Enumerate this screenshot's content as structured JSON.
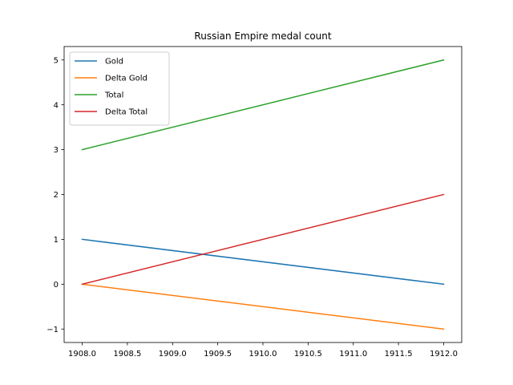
{
  "chart_data": {
    "type": "line",
    "title": "Russian Empire medal count",
    "xlabel": "",
    "ylabel": "",
    "xlim": [
      1907.8,
      1912.2
    ],
    "ylim": [
      -1.3,
      5.3
    ],
    "xticks": [
      1908.0,
      1908.5,
      1909.0,
      1909.5,
      1910.0,
      1910.5,
      1911.0,
      1911.5,
      1912.0
    ],
    "xtick_labels": [
      "1908.0",
      "1908.5",
      "1909.0",
      "1909.5",
      "1910.0",
      "1910.5",
      "1911.0",
      "1911.5",
      "1912.0"
    ],
    "yticks": [
      -1,
      0,
      1,
      2,
      3,
      4,
      5
    ],
    "ytick_labels": [
      "−1",
      "0",
      "1",
      "2",
      "3",
      "4",
      "5"
    ],
    "x": [
      1908,
      1912
    ],
    "grid": false,
    "legend_position": "top-left",
    "series": [
      {
        "name": "Gold",
        "values": [
          1,
          0
        ],
        "color": "#1f77b4"
      },
      {
        "name": "Delta Gold",
        "values": [
          0,
          -1
        ],
        "color": "#ff7f0e"
      },
      {
        "name": "Total",
        "values": [
          3,
          5
        ],
        "color": "#2ca02c"
      },
      {
        "name": "Delta Total",
        "values": [
          0,
          2
        ],
        "color": "#d62728"
      }
    ]
  }
}
